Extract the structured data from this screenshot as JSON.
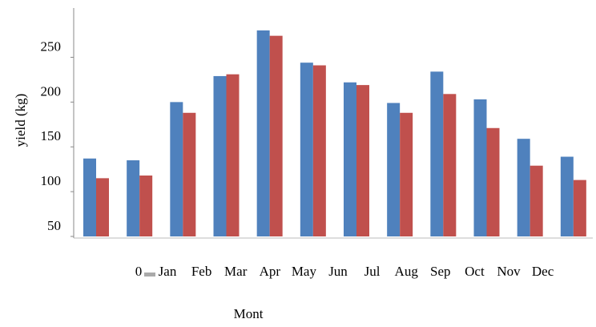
{
  "chart_data": {
    "type": "bar",
    "y_label": "yield (kg)",
    "x_label": "Mont",
    "annotation": "0",
    "categories": [
      "Jan",
      "Feb",
      "Mar",
      "Apr",
      "May",
      "Jun",
      "Jul",
      "Aug",
      "Sep",
      "Oct",
      "Nov",
      "Dec"
    ],
    "series": [
      {
        "color": "#4f81bd",
        "values": [
          137,
          135,
          200,
          229,
          280,
          244,
          222,
          199,
          234,
          203,
          159,
          139
        ]
      },
      {
        "color": "#c0504d",
        "values": [
          115,
          118,
          188,
          231,
          274,
          241,
          219,
          188,
          209,
          171,
          129,
          113
        ]
      }
    ],
    "ylim": [
      50,
      305
    ],
    "yticks": [
      50,
      100,
      150,
      200,
      250
    ],
    "grid": false
  }
}
